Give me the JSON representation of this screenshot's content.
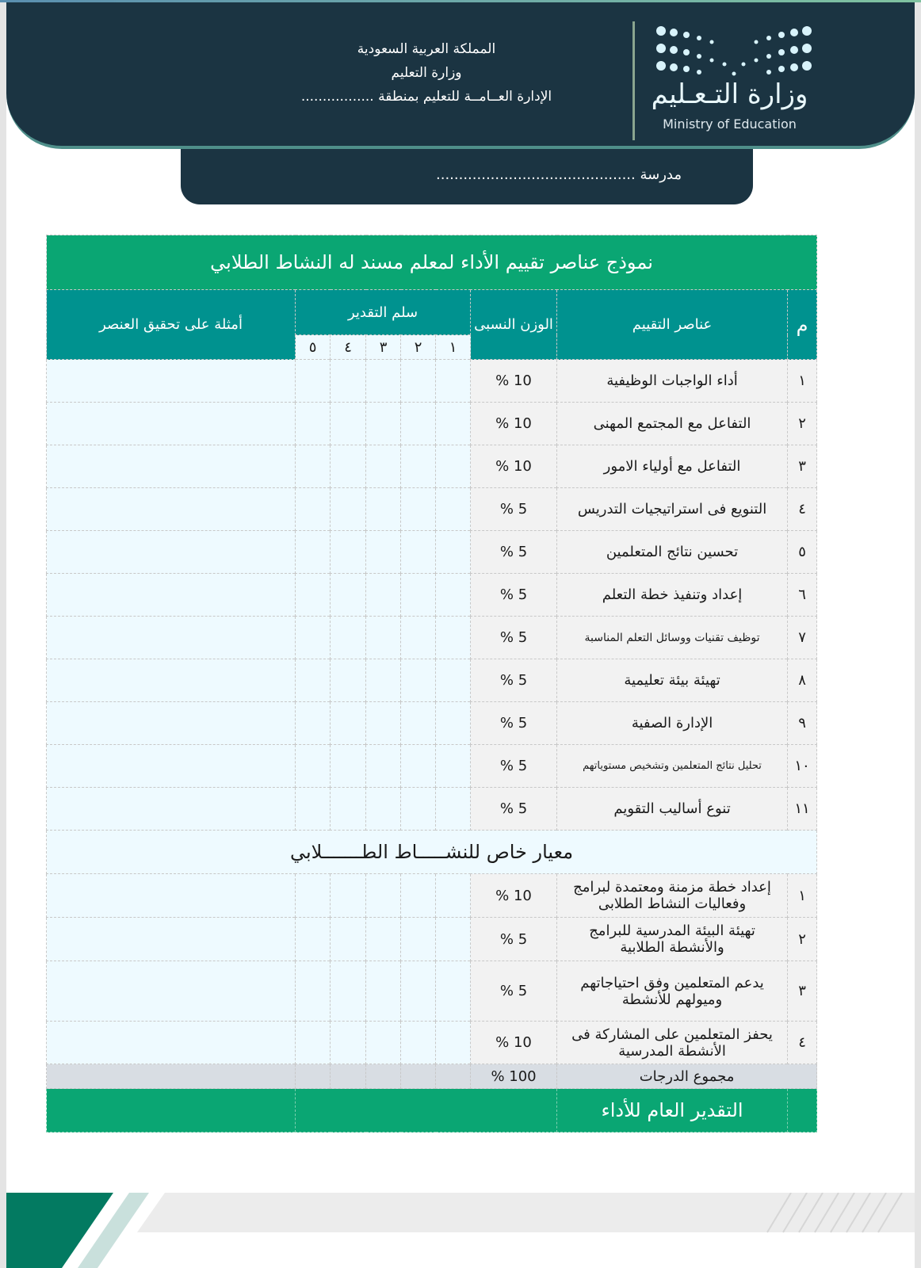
{
  "header": {
    "country": "المملكة العربية السعودية",
    "ministry": "وزارة التعليم",
    "directorate": "الإدارة العــامــة للتعليم بمنطقة .................",
    "school": "مدرسة ............................................",
    "logo_ar": "وزارة التـعـليم",
    "logo_en": "Ministry of Education"
  },
  "colors": {
    "dark": "#1b3442",
    "green": "#0aa673",
    "teal": "#00928f"
  },
  "table": {
    "title": "نموذج عناصر تقييم الأداء لمعلم مسند له النشاط  الطلابي",
    "headers": {
      "num": "م",
      "element": "عناصر التقييم",
      "weight": "الوزن النسبى",
      "scale": "سلم التقدير",
      "examples": "أمثلة على تحقيق العنصر",
      "scale_levels": [
        "١",
        "٢",
        "٣",
        "٤",
        "٥"
      ]
    },
    "rows": [
      {
        "num": "١",
        "element": "أداء الواجبات الوظيفية",
        "weight": "10 %"
      },
      {
        "num": "٢",
        "element": "التفاعل مع المجتمع المهنى",
        "weight": "10 %"
      },
      {
        "num": "٣",
        "element": "التفاعل مع أولياء الامور",
        "weight": "10 %"
      },
      {
        "num": "٤",
        "element": "التنويع فى استراتيجيات التدريس",
        "weight": "5 %"
      },
      {
        "num": "٥",
        "element": "تحسين نتائج المتعلمين",
        "weight": "5 %"
      },
      {
        "num": "٦",
        "element": "إعداد وتنفيذ خطة التعلم",
        "weight": "5 %"
      },
      {
        "num": "٧",
        "element": "توظيف تقنيات ووسائل التعلم المناسبة",
        "weight": "5 %"
      },
      {
        "num": "٨",
        "element": "تهيئة بيئة تعليمية",
        "weight": "5 %"
      },
      {
        "num": "٩",
        "element": "الإدارة الصفية",
        "weight": "5 %"
      },
      {
        "num": "١٠",
        "element": "تحليل نتائج المتعلمين وتشخيص مستوياتهم",
        "weight": "5 %"
      },
      {
        "num": "١١",
        "element": "تنوع أساليب التقويم",
        "weight": "5 %"
      }
    ],
    "section_title": "معيار خاص للنشـــــاط الطـــــــلابي",
    "section_rows": [
      {
        "num": "١",
        "element": "إعداد خطة مزمنة ومعتمدة لبرامج وفعاليات النشاط الطلابى",
        "weight": "10 %"
      },
      {
        "num": "٢",
        "element": "تهيئة البيئة المدرسية للبرامج والأنشطة الطلابية",
        "weight": "5 %"
      },
      {
        "num": "٣",
        "element": "يدعم المتعلمين وفق احتياجاتهم وميولهم للأنشطة",
        "weight": "5 %"
      },
      {
        "num": "٤",
        "element": "يحفز المتعلمين على المشاركة فى الأنشطة المدرسية",
        "weight": "10 %"
      }
    ],
    "total_label": "مجموع الدرجات",
    "total_weight": "100 %",
    "overall_label": "التقدير العام للأداء"
  }
}
